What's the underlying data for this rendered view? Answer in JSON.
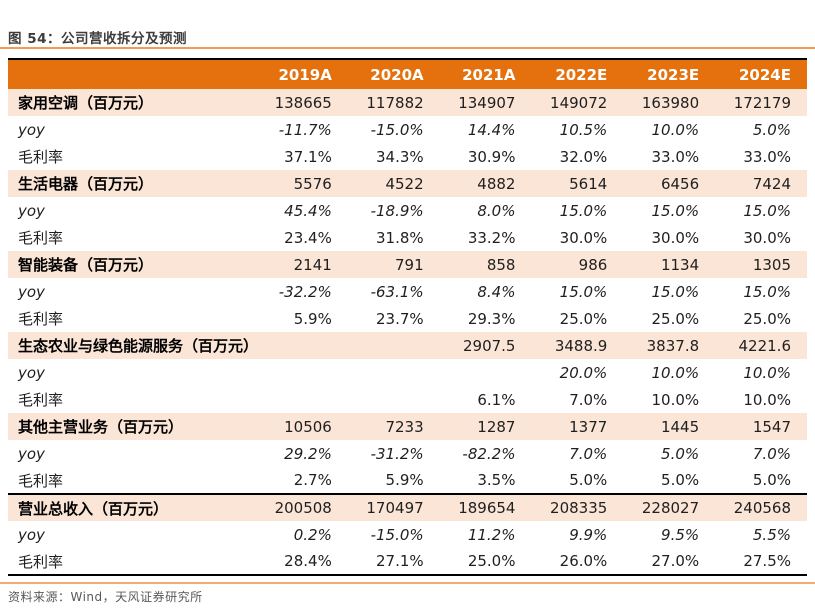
{
  "figure": {
    "title": "图 54：公司营收拆分及预测",
    "source": "资料来源：Wind，天风证券研究所"
  },
  "colors": {
    "header_bg": "#E4710D",
    "header_text": "#FFFFFF",
    "category_row_bg": "#FBE5D6",
    "accent_line": "#F19B55",
    "table_border": "#000000",
    "source_text": "#595959"
  },
  "chart_data": {
    "type": "table",
    "columns": [
      "",
      "2019A",
      "2020A",
      "2021A",
      "2022E",
      "2023E",
      "2024E"
    ],
    "rows": [
      {
        "label": "家用空调（百万元）",
        "style": "category",
        "values": [
          "138665",
          "117882",
          "134907",
          "149072",
          "163980",
          "172179"
        ]
      },
      {
        "label": "yoy",
        "style": "yoy",
        "values": [
          "-11.7%",
          "-15.0%",
          "14.4%",
          "10.5%",
          "10.0%",
          "5.0%"
        ]
      },
      {
        "label": "毛利率",
        "style": "margin",
        "values": [
          "37.1%",
          "34.3%",
          "30.9%",
          "32.0%",
          "33.0%",
          "33.0%"
        ]
      },
      {
        "label": "生活电器（百万元）",
        "style": "category",
        "values": [
          "5576",
          "4522",
          "4882",
          "5614",
          "6456",
          "7424"
        ]
      },
      {
        "label": "yoy",
        "style": "yoy",
        "values": [
          "45.4%",
          "-18.9%",
          "8.0%",
          "15.0%",
          "15.0%",
          "15.0%"
        ]
      },
      {
        "label": "毛利率",
        "style": "margin",
        "values": [
          "23.4%",
          "31.8%",
          "33.2%",
          "30.0%",
          "30.0%",
          "30.0%"
        ]
      },
      {
        "label": "智能装备（百万元）",
        "style": "category",
        "values": [
          "2141",
          "791",
          "858",
          "986",
          "1134",
          "1305"
        ]
      },
      {
        "label": "yoy",
        "style": "yoy",
        "values": [
          "-32.2%",
          "-63.1%",
          "8.4%",
          "15.0%",
          "15.0%",
          "15.0%"
        ]
      },
      {
        "label": "毛利率",
        "style": "margin",
        "values": [
          "5.9%",
          "23.7%",
          "29.3%",
          "25.0%",
          "25.0%",
          "25.0%"
        ]
      },
      {
        "label": "生态农业与绿色能源服务（百万元）",
        "style": "category",
        "values": [
          "",
          "",
          "2907.5",
          "3488.9",
          "3837.8",
          "4221.6"
        ]
      },
      {
        "label": "yoy",
        "style": "yoy",
        "values": [
          "",
          "",
          "",
          "20.0%",
          "10.0%",
          "10.0%"
        ]
      },
      {
        "label": "毛利率",
        "style": "margin",
        "values": [
          "",
          "",
          "6.1%",
          "7.0%",
          "10.0%",
          "10.0%"
        ]
      },
      {
        "label": "其他主营业务（百万元）",
        "style": "category",
        "values": [
          "10506",
          "7233",
          "1287",
          "1377",
          "1445",
          "1547"
        ]
      },
      {
        "label": "yoy",
        "style": "yoy",
        "values": [
          "29.2%",
          "-31.2%",
          "-82.2%",
          "7.0%",
          "5.0%",
          "7.0%"
        ]
      },
      {
        "label": "毛利率",
        "style": "margin",
        "values": [
          "2.7%",
          "5.9%",
          "3.5%",
          "5.0%",
          "5.0%",
          "5.0%"
        ]
      },
      {
        "label": "营业总收入（百万元）",
        "style": "category total",
        "values": [
          "200508",
          "170497",
          "189654",
          "208335",
          "228027",
          "240568"
        ]
      },
      {
        "label": "yoy",
        "style": "yoy",
        "values": [
          "0.2%",
          "-15.0%",
          "11.2%",
          "9.9%",
          "9.5%",
          "5.5%"
        ]
      },
      {
        "label": "毛利率",
        "style": "margin",
        "values": [
          "28.4%",
          "27.1%",
          "25.0%",
          "26.0%",
          "27.0%",
          "27.5%"
        ]
      }
    ]
  }
}
